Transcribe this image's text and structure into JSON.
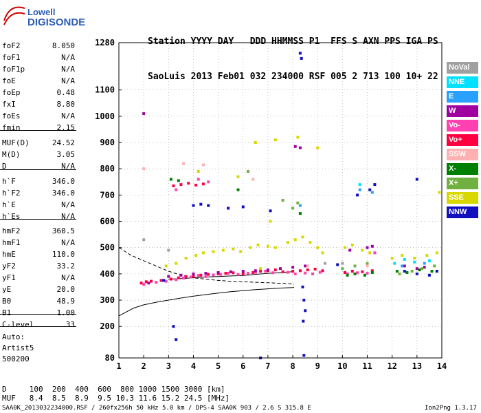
{
  "logo": {
    "top": "Lowell",
    "bottom": "DIGISONDE"
  },
  "header": {
    "row1": "Station YYYY DAY   DDD HHMMSS P1  FFS S AXN PPS IGA PS",
    "row2": "SaoLuis 2013 Feb01 032 234000 RSF 005 2 713 100 10+ 22"
  },
  "params": [
    {
      "k": "foF2",
      "v": "8.050"
    },
    {
      "k": "foF1",
      "v": "N/A"
    },
    {
      "k": "foF1p",
      "v": "N/A"
    },
    {
      "k": "foE",
      "v": "N/A"
    },
    {
      "k": "foEp",
      "v": "0.48"
    },
    {
      "k": "fxI",
      "v": "8.80"
    },
    {
      "k": "foEs",
      "v": "N/A"
    },
    {
      "k": "fmin",
      "v": "2.15"
    },
    {
      "k": "MUF(D)",
      "v": "24.52"
    },
    {
      "k": "M(D)",
      "v": "3.05"
    },
    {
      "k": "D",
      "v": "N/A"
    },
    {
      "k": "h`F",
      "v": "346.0"
    },
    {
      "k": "h`F2",
      "v": "346.0"
    },
    {
      "k": "h`E",
      "v": "N/A"
    },
    {
      "k": "h`Es",
      "v": "N/A"
    },
    {
      "k": "hmF2",
      "v": "360.5"
    },
    {
      "k": "hmF1",
      "v": "N/A"
    },
    {
      "k": "hmE",
      "v": "110.0"
    },
    {
      "k": "yF2",
      "v": "33.2"
    },
    {
      "k": "yF1",
      "v": "N/A"
    },
    {
      "k": "yE",
      "v": "20.0"
    },
    {
      "k": "B0",
      "v": "48.9"
    },
    {
      "k": "B1",
      "v": "1.00"
    },
    {
      "k": "C-level",
      "v": "33"
    }
  ],
  "autoscale": {
    "line1": "Auto:",
    "line2": "Artist5",
    "line3": "500200"
  },
  "legend": [
    {
      "label": "NoVal",
      "color": "#a0a0a0"
    },
    {
      "label": "NNE",
      "color": "#00e0ff"
    },
    {
      "label": "E",
      "color": "#2aa0ff"
    },
    {
      "label": "W",
      "color": "#a000a0"
    },
    {
      "label": "Vo-",
      "color": "#ff40b0"
    },
    {
      "label": "Vo+",
      "color": "#ff0040"
    },
    {
      "label": "SSW",
      "color": "#ffb0b0"
    },
    {
      "label": "X-",
      "color": "#008000"
    },
    {
      "label": "X+",
      "color": "#70b040"
    },
    {
      "label": "SSE",
      "color": "#d8d800"
    },
    {
      "label": "NNW",
      "color": "#1010c0"
    }
  ],
  "footer": {
    "d_row": "D     100  200  400  600  800 1000 1500 3000 [km]",
    "muf_row": "MUF   8.4  8.5  8.9  9.5 10.3 11.6 15.2 24.5 [MHz]",
    "file_line": "SAA0K_2013032234000.RSF / 260fx256h 50 kHz 5.0 km / DPS-4 SAA0K 903 / 2.6 S 315.8 E",
    "version": "Ion2Png 1.3.17"
  },
  "chart_data": {
    "type": "scatter",
    "xlim": [
      1,
      14
    ],
    "ylim": [
      80,
      1280
    ],
    "x_ticks": [
      1,
      2,
      3,
      4,
      5,
      6,
      7,
      8,
      9,
      10,
      11,
      12,
      13,
      14
    ],
    "y_ticks": [
      80,
      200,
      300,
      400,
      500,
      600,
      700,
      800,
      900,
      1000,
      1100,
      1280
    ],
    "grid": true,
    "series": [
      {
        "name": "Vo+",
        "color": "#ff0040",
        "points": [
          [
            1.9,
            365
          ],
          [
            2.1,
            370
          ],
          [
            2.3,
            372
          ],
          [
            2.7,
            375
          ],
          [
            3.1,
            380
          ],
          [
            3.4,
            385
          ],
          [
            3.7,
            390
          ],
          [
            4.0,
            392
          ],
          [
            4.3,
            395
          ],
          [
            4.6,
            398
          ],
          [
            5.0,
            400
          ],
          [
            5.3,
            402
          ],
          [
            5.6,
            404
          ],
          [
            6.0,
            400
          ],
          [
            6.4,
            405
          ],
          [
            6.7,
            410
          ],
          [
            7.0,
            412
          ],
          [
            7.3,
            415
          ],
          [
            7.6,
            408
          ],
          [
            8.0,
            410
          ],
          [
            8.3,
            412
          ],
          [
            8.6,
            415
          ],
          [
            8.9,
            418
          ],
          [
            9.2,
            412
          ],
          [
            10.1,
            405
          ],
          [
            10.4,
            410
          ],
          [
            10.8,
            408
          ],
          [
            11.2,
            412
          ],
          [
            3.2,
            735
          ],
          [
            3.5,
            740
          ],
          [
            3.8,
            745
          ],
          [
            4.1,
            738
          ],
          [
            4.4,
            742
          ]
        ]
      },
      {
        "name": "Vo-",
        "color": "#ff40b0",
        "points": [
          [
            2.0,
            360
          ],
          [
            2.5,
            368
          ],
          [
            2.9,
            372
          ],
          [
            3.3,
            378
          ],
          [
            3.6,
            384
          ],
          [
            3.9,
            388
          ],
          [
            4.2,
            394
          ],
          [
            4.5,
            390
          ],
          [
            4.8,
            396
          ],
          [
            5.1,
            398
          ],
          [
            5.4,
            402
          ],
          [
            5.8,
            398
          ],
          [
            6.2,
            402
          ],
          [
            6.5,
            406
          ],
          [
            6.9,
            410
          ],
          [
            7.2,
            404
          ],
          [
            7.8,
            406
          ],
          [
            8.1,
            400
          ],
          [
            8.5,
            403
          ],
          [
            8.8,
            400
          ],
          [
            9.1,
            406
          ],
          [
            10.2,
            400
          ],
          [
            10.6,
            404
          ],
          [
            11.0,
            402
          ],
          [
            11.3,
            480
          ],
          [
            3.3,
            720
          ],
          [
            4.2,
            760
          ],
          [
            4.6,
            750
          ]
        ]
      },
      {
        "name": "W",
        "color": "#a000a0",
        "points": [
          [
            2.0,
            1010
          ],
          [
            2.2,
            365
          ],
          [
            3.0,
            390
          ],
          [
            3.5,
            395
          ],
          [
            4.0,
            400
          ],
          [
            4.5,
            402
          ],
          [
            5.0,
            405
          ],
          [
            5.5,
            408
          ],
          [
            6.0,
            410
          ],
          [
            6.5,
            412
          ],
          [
            7.0,
            415
          ],
          [
            7.5,
            420
          ],
          [
            8.0,
            425
          ],
          [
            8.5,
            430
          ],
          [
            8.1,
            885
          ],
          [
            8.3,
            880
          ],
          [
            10.3,
            490
          ],
          [
            11.0,
            500
          ],
          [
            11.2,
            505
          ],
          [
            12.5,
            430
          ],
          [
            13.0,
            420
          ],
          [
            13.3,
            425
          ]
        ]
      },
      {
        "name": "SSE",
        "color": "#d8d800",
        "points": [
          [
            2.9,
            430
          ],
          [
            3.3,
            440
          ],
          [
            3.7,
            460
          ],
          [
            4.1,
            470
          ],
          [
            4.4,
            480
          ],
          [
            4.8,
            485
          ],
          [
            5.2,
            490
          ],
          [
            5.6,
            495
          ],
          [
            5.9,
            485
          ],
          [
            6.3,
            500
          ],
          [
            6.6,
            510
          ],
          [
            7.0,
            505
          ],
          [
            7.3,
            500
          ],
          [
            7.8,
            520
          ],
          [
            8.1,
            530
          ],
          [
            8.4,
            540
          ],
          [
            8.7,
            520
          ],
          [
            9.0,
            500
          ],
          [
            9.2,
            480
          ],
          [
            10.1,
            500
          ],
          [
            10.4,
            510
          ],
          [
            10.8,
            490
          ],
          [
            11.1,
            480
          ],
          [
            12.0,
            460
          ],
          [
            12.4,
            470
          ],
          [
            12.9,
            460
          ],
          [
            13.4,
            470
          ],
          [
            13.8,
            480
          ],
          [
            13.9,
            710
          ],
          [
            6.5,
            900
          ],
          [
            7.3,
            910
          ],
          [
            8.2,
            920
          ],
          [
            9.0,
            880
          ],
          [
            5.8,
            770
          ],
          [
            4.2,
            790
          ],
          [
            6.7,
            420
          ],
          [
            7.1,
            600
          ]
        ]
      },
      {
        "name": "X+",
        "color": "#70b040",
        "points": [
          [
            7.6,
            680
          ],
          [
            8.0,
            650
          ],
          [
            8.2,
            670
          ],
          [
            10.0,
            420
          ],
          [
            10.5,
            430
          ],
          [
            11.0,
            440
          ],
          [
            12.3,
            400
          ],
          [
            12.8,
            410
          ],
          [
            13.2,
            420
          ],
          [
            13.7,
            430
          ],
          [
            6.2,
            790
          ]
        ]
      },
      {
        "name": "X-",
        "color": "#008000",
        "points": [
          [
            3.1,
            760
          ],
          [
            3.4,
            755
          ],
          [
            10.2,
            395
          ],
          [
            10.5,
            400
          ],
          [
            10.9,
            395
          ],
          [
            11.2,
            405
          ],
          [
            12.2,
            410
          ],
          [
            12.6,
            405
          ],
          [
            13.1,
            415
          ],
          [
            13.6,
            410
          ],
          [
            8.3,
            630
          ],
          [
            5.8,
            720
          ]
        ]
      },
      {
        "name": "NNW",
        "color": "#1010c0",
        "points": [
          [
            2.8,
            375
          ],
          [
            3.2,
            200
          ],
          [
            3.3,
            150
          ],
          [
            4.0,
            660
          ],
          [
            4.3,
            665
          ],
          [
            4.6,
            660
          ],
          [
            5.4,
            650
          ],
          [
            6.0,
            655
          ],
          [
            7.1,
            640
          ],
          [
            8.3,
            1240
          ],
          [
            8.35,
            1220
          ],
          [
            8.4,
            350
          ],
          [
            8.45,
            300
          ],
          [
            8.5,
            260
          ],
          [
            8.42,
            220
          ],
          [
            8.45,
            90
          ],
          [
            6.7,
            80
          ],
          [
            10.6,
            700
          ],
          [
            11.1,
            720
          ],
          [
            11.3,
            740
          ],
          [
            12.5,
            410
          ],
          [
            13.0,
            400
          ],
          [
            13.5,
            395
          ],
          [
            13.8,
            410
          ],
          [
            13.0,
            760
          ],
          [
            9.8,
            435
          ]
        ]
      },
      {
        "name": "NNE",
        "color": "#00e0ff",
        "points": [
          [
            12.1,
            440
          ],
          [
            12.5,
            455
          ],
          [
            12.9,
            445
          ],
          [
            13.5,
            450
          ],
          [
            10.7,
            740
          ]
        ]
      },
      {
        "name": "E",
        "color": "#2aa0ff",
        "points": [
          [
            8.3,
            660
          ],
          [
            10.7,
            720
          ],
          [
            11.2,
            710
          ],
          [
            12.4,
            430
          ],
          [
            13.3,
            440
          ]
        ]
      },
      {
        "name": "SSW",
        "color": "#ffb0b0",
        "points": [
          [
            2.0,
            800
          ],
          [
            3.6,
            820
          ],
          [
            4.4,
            815
          ],
          [
            6.4,
            760
          ],
          [
            8.6,
            430
          ],
          [
            11.0,
            430
          ]
        ]
      },
      {
        "name": "NoVal",
        "color": "#a0a0a0",
        "points": [
          [
            2.0,
            530
          ],
          [
            3.0,
            490
          ],
          [
            9.3,
            440
          ],
          [
            10.0,
            440
          ]
        ]
      }
    ],
    "curves": {
      "dashed": [
        [
          1,
          500
        ],
        [
          1.5,
          470
        ],
        [
          2,
          450
        ],
        [
          2.5,
          430
        ],
        [
          3,
          410
        ],
        [
          3.5,
          395
        ],
        [
          4,
          385
        ],
        [
          4.5,
          380
        ],
        [
          5,
          375
        ],
        [
          5.5,
          372
        ],
        [
          6,
          370
        ],
        [
          6.5,
          368
        ],
        [
          7,
          366
        ],
        [
          7.5,
          364
        ],
        [
          8,
          362
        ],
        [
          8.05,
          360
        ]
      ],
      "solid_upper": [
        [
          3,
          380
        ],
        [
          3.5,
          382
        ],
        [
          4,
          385
        ],
        [
          4.5,
          388
        ],
        [
          5,
          390
        ],
        [
          5.5,
          392
        ],
        [
          6,
          394
        ],
        [
          6.5,
          398
        ],
        [
          7,
          402
        ],
        [
          7.5,
          405
        ],
        [
          8,
          408
        ],
        [
          8.05,
          410
        ]
      ],
      "solid_lower": [
        [
          1,
          240
        ],
        [
          1.3,
          255
        ],
        [
          1.6,
          270
        ],
        [
          2,
          282
        ],
        [
          2.5,
          292
        ],
        [
          3,
          300
        ],
        [
          3.5,
          308
        ],
        [
          4,
          315
        ],
        [
          4.5,
          321
        ],
        [
          5,
          327
        ],
        [
          5.5,
          332
        ],
        [
          6,
          336
        ],
        [
          6.5,
          340
        ],
        [
          7,
          343
        ],
        [
          7.5,
          346
        ],
        [
          8,
          348
        ],
        [
          8.05,
          349
        ]
      ]
    }
  }
}
